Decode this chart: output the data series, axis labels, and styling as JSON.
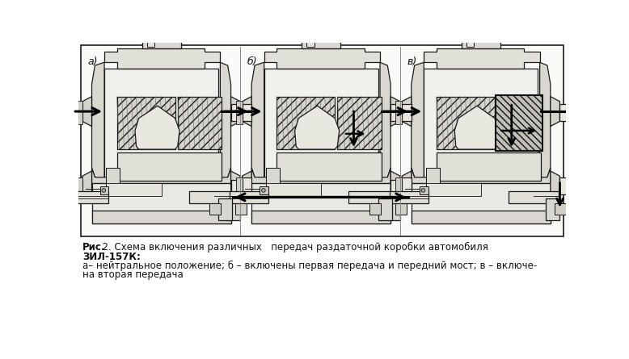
{
  "bg_color": "#ffffff",
  "fig_width": 7.78,
  "fig_height": 4.45,
  "dpi": 100,
  "box_bg": "#f5f5f0",
  "hatch_color": "#555555",
  "line_color": "#1a1a1a",
  "arrow_color": "#000000",
  "caption_line1_bold": "Рис.",
  "caption_line1_normal": "  2. Схема включения различных   передач раздаточной коробки автомобиля",
  "caption_line2": "ЗИЛ-157К:",
  "caption_line3": "а– нейтральное положение; б – включены первая передача и передний мост; в – включе-",
  "caption_line4": "на вторая передача",
  "label_a": "а)",
  "label_b": "б)",
  "label_v": "в)"
}
